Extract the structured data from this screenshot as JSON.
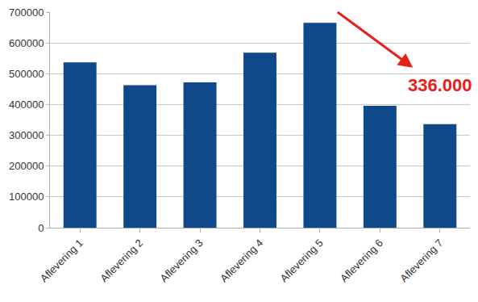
{
  "chart_data": {
    "type": "bar",
    "categories": [
      "Aflevering 1",
      "Aflevering 2",
      "Aflevering 3",
      "Aflevering 4",
      "Aflevering 5",
      "Aflevering 6",
      "Aflevering 7"
    ],
    "values": [
      537000,
      463000,
      472000,
      568000,
      665000,
      396000,
      336000
    ],
    "color": "#0e4a8a",
    "ylim": [
      0,
      700000
    ],
    "yticks": [
      0,
      100000,
      200000,
      300000,
      400000,
      500000,
      600000,
      700000
    ],
    "grid": true,
    "annotations": [
      {
        "text": "336.000",
        "category": "Aflevering 7",
        "value": 336000,
        "color": "#e8201a",
        "arrow_from": "Aflevering 5"
      }
    ]
  }
}
